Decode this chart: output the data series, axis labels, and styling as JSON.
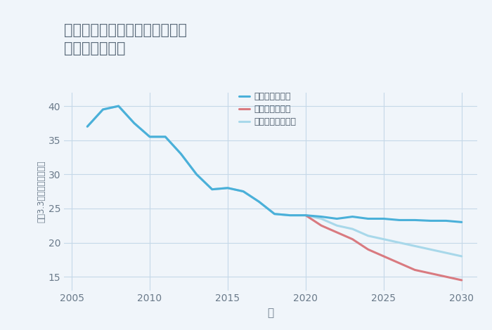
{
  "title": "兵庫県たつの市揖保川町馬場の\n土地の価格推移",
  "xlabel": "年",
  "ylabel": "坪（3.3㎡）単価（万円）",
  "background_color": "#f0f5fa",
  "plot_bg_color": "#f0f5fa",
  "grid_color": "#c5d8e8",
  "ylim": [
    13,
    42
  ],
  "yticks": [
    15,
    20,
    25,
    30,
    35,
    40
  ],
  "xlim": [
    2004.5,
    2031
  ],
  "xticks": [
    2005,
    2010,
    2015,
    2020,
    2025,
    2030
  ],
  "good_scenario": {
    "x": [
      2006,
      2007,
      2008,
      2009,
      2010,
      2011,
      2012,
      2013,
      2014,
      2015,
      2016,
      2017,
      2018,
      2019,
      2020,
      2021,
      2022,
      2023,
      2024,
      2025,
      2026,
      2027,
      2028,
      2029,
      2030
    ],
    "y": [
      37.0,
      39.5,
      40.0,
      37.5,
      35.5,
      35.5,
      33.0,
      30.0,
      27.8,
      28.0,
      27.5,
      26.0,
      24.2,
      24.0,
      24.0,
      23.8,
      23.5,
      23.8,
      23.5,
      23.5,
      23.3,
      23.3,
      23.2,
      23.2,
      23.0
    ],
    "color": "#4ab0d9",
    "linewidth": 2.2,
    "label": "グッドシナリオ",
    "linestyle": "-"
  },
  "bad_scenario": {
    "x": [
      2020,
      2021,
      2022,
      2023,
      2024,
      2025,
      2026,
      2027,
      2028,
      2029,
      2030
    ],
    "y": [
      24.0,
      22.5,
      21.5,
      20.5,
      19.0,
      18.0,
      17.0,
      16.0,
      15.5,
      15.0,
      14.5
    ],
    "color": "#d97a80",
    "linewidth": 2.2,
    "label": "バッドシナリオ",
    "linestyle": "-"
  },
  "normal_scenario": {
    "x": [
      2006,
      2007,
      2008,
      2009,
      2010,
      2011,
      2012,
      2013,
      2014,
      2015,
      2016,
      2017,
      2018,
      2019,
      2020,
      2021,
      2022,
      2023,
      2024,
      2025,
      2026,
      2027,
      2028,
      2029,
      2030
    ],
    "y": [
      37.0,
      39.5,
      40.0,
      37.5,
      35.5,
      35.5,
      33.0,
      30.0,
      27.8,
      28.0,
      27.5,
      26.0,
      24.2,
      24.0,
      24.0,
      23.5,
      22.5,
      22.0,
      21.0,
      20.5,
      20.0,
      19.5,
      19.0,
      18.5,
      18.0
    ],
    "color": "#a8d8ea",
    "linewidth": 2.2,
    "label": "ノーマルシナリオ",
    "linestyle": "-"
  },
  "title_color": "#5a6a7a",
  "axis_color": "#6a7a8a",
  "tick_color": "#6a7a8a",
  "legend_text_color": "#4a5a6a",
  "title_fontsize": 15,
  "tick_fontsize": 10,
  "legend_fontsize": 9
}
